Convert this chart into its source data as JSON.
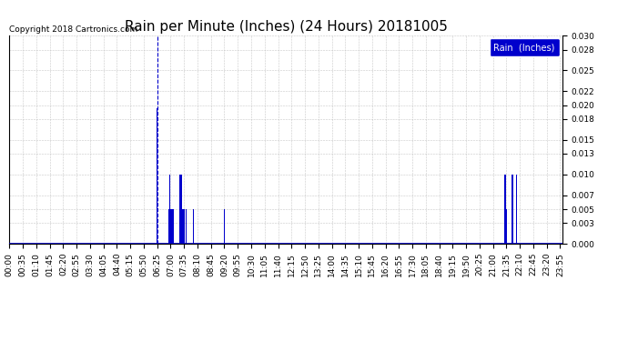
{
  "title": "Rain per Minute (Inches) (24 Hours) 20181005",
  "copyright_text": "Copyright 2018 Cartronics.com",
  "legend_label": "Rain  (Inches)",
  "ylim": [
    0.0,
    0.03
  ],
  "yticks": [
    0.0,
    0.003,
    0.005,
    0.007,
    0.01,
    0.013,
    0.015,
    0.018,
    0.02,
    0.022,
    0.025,
    0.028,
    0.03
  ],
  "bar_color": "#0000cc",
  "bg_color": "#ffffff",
  "grid_color": "#bbbbbb",
  "title_fontsize": 11,
  "axis_fontsize": 6.5,
  "tick_step": 35,
  "total_minutes": 1440,
  "vline_minute": 385,
  "rain_data": [
    {
      "minute": 385,
      "value": 0.0196
    },
    {
      "minute": 415,
      "value": 0.005
    },
    {
      "minute": 416,
      "value": 0.005
    },
    {
      "minute": 417,
      "value": 0.005
    },
    {
      "minute": 418,
      "value": 0.01
    },
    {
      "minute": 419,
      "value": 0.01
    },
    {
      "minute": 420,
      "value": 0.005
    },
    {
      "minute": 421,
      "value": 0.005
    },
    {
      "minute": 422,
      "value": 0.005
    },
    {
      "minute": 423,
      "value": 0.005
    },
    {
      "minute": 424,
      "value": 0.005
    },
    {
      "minute": 425,
      "value": 0.005
    },
    {
      "minute": 427,
      "value": 0.005
    },
    {
      "minute": 443,
      "value": 0.01
    },
    {
      "minute": 444,
      "value": 0.01
    },
    {
      "minute": 446,
      "value": 0.01
    },
    {
      "minute": 447,
      "value": 0.01
    },
    {
      "minute": 448,
      "value": 0.01
    },
    {
      "minute": 449,
      "value": 0.005
    },
    {
      "minute": 450,
      "value": 0.005
    },
    {
      "minute": 451,
      "value": 0.005
    },
    {
      "minute": 452,
      "value": 0.005
    },
    {
      "minute": 453,
      "value": 0.005
    },
    {
      "minute": 455,
      "value": 0.005
    },
    {
      "minute": 460,
      "value": 0.005
    },
    {
      "minute": 462,
      "value": 0.005
    },
    {
      "minute": 480,
      "value": 0.005
    },
    {
      "minute": 560,
      "value": 0.005
    },
    {
      "minute": 1290,
      "value": 0.01
    },
    {
      "minute": 1291,
      "value": 0.01
    },
    {
      "minute": 1292,
      "value": 0.01
    },
    {
      "minute": 1293,
      "value": 0.01
    },
    {
      "minute": 1295,
      "value": 0.005
    },
    {
      "minute": 1296,
      "value": 0.005
    },
    {
      "minute": 1310,
      "value": 0.01
    },
    {
      "minute": 1311,
      "value": 0.01
    },
    {
      "minute": 1312,
      "value": 0.01
    },
    {
      "minute": 1313,
      "value": 0.005
    },
    {
      "minute": 1315,
      "value": 0.005
    },
    {
      "minute": 1320,
      "value": 0.01
    },
    {
      "minute": 1321,
      "value": 0.01
    }
  ]
}
